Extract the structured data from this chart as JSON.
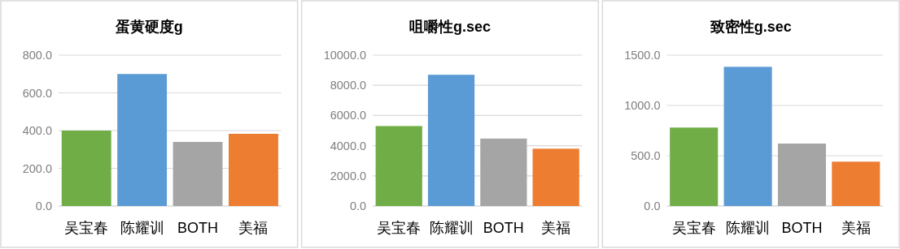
{
  "chart_data": [
    {
      "type": "bar",
      "title": "蛋黄硬度g",
      "categories": [
        "吴宝春",
        "陈耀训",
        "BOTH",
        "美福"
      ],
      "values": [
        400,
        700,
        340,
        383
      ],
      "colors": [
        "#70ad47",
        "#5b9bd5",
        "#a5a5a5",
        "#ed7d31"
      ],
      "ylim": [
        0,
        800
      ],
      "yticks": [
        {
          "value": 0,
          "label": "0.0"
        },
        {
          "value": 200,
          "label": "200.0"
        },
        {
          "value": 400,
          "label": "400.0"
        },
        {
          "value": 600,
          "label": "600.0"
        },
        {
          "value": 800,
          "label": "800.0"
        }
      ],
      "grid": "y"
    },
    {
      "type": "bar",
      "title": "咀嚼性g.sec",
      "categories": [
        "吴宝春",
        "陈耀训",
        "BOTH",
        "美福"
      ],
      "values": [
        5300,
        8700,
        4470,
        3800
      ],
      "colors": [
        "#70ad47",
        "#5b9bd5",
        "#a5a5a5",
        "#ed7d31"
      ],
      "ylim": [
        0,
        10000
      ],
      "yticks": [
        {
          "value": 0,
          "label": "0.0"
        },
        {
          "value": 2000,
          "label": "2000.0"
        },
        {
          "value": 4000,
          "label": "4000.0"
        },
        {
          "value": 6000,
          "label": "6000.0"
        },
        {
          "value": 8000,
          "label": "8000.0"
        },
        {
          "value": 10000,
          "label": "10000.0"
        }
      ],
      "grid": "y"
    },
    {
      "type": "bar",
      "title": "致密性g.sec",
      "categories": [
        "吴宝春",
        "陈耀训",
        "BOTH",
        "美福"
      ],
      "values": [
        780,
        1384,
        621,
        441
      ],
      "colors": [
        "#70ad47",
        "#5b9bd5",
        "#a5a5a5",
        "#ed7d31"
      ],
      "ylim": [
        0,
        1500
      ],
      "yticks": [
        {
          "value": 0,
          "label": "0.0"
        },
        {
          "value": 500,
          "label": "500.0"
        },
        {
          "value": 1000,
          "label": "1000.0"
        },
        {
          "value": 1500,
          "label": "1500.0"
        }
      ],
      "grid": "y"
    }
  ]
}
